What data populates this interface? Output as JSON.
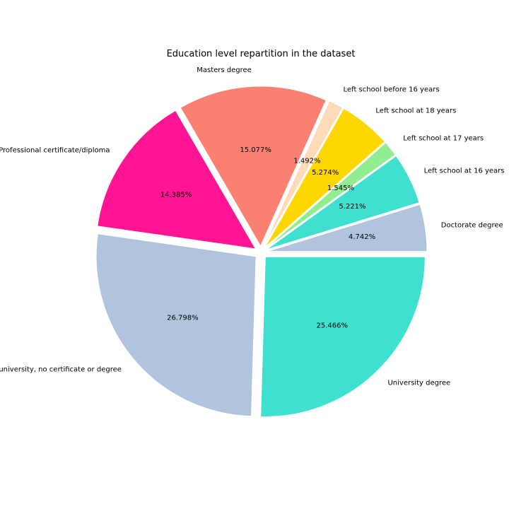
{
  "chart_data": {
    "type": "pie",
    "title": "Education level repartition in the dataset",
    "start_angle_deg": 0,
    "direction": "counterclockwise",
    "slices": [
      {
        "label": "Doctorate degree",
        "value": 4.742,
        "pct_label": "4.742%",
        "color": "#B0C4DE"
      },
      {
        "label": "Left school at 16 years",
        "value": 5.221,
        "pct_label": "5.221%",
        "color": "#40E0D0"
      },
      {
        "label": "Left school at 17 years",
        "value": 1.545,
        "pct_label": "1.545%",
        "color": "#90EE90"
      },
      {
        "label": "Left school at 18 years",
        "value": 5.274,
        "pct_label": "5.274%",
        "color": "#FFD700"
      },
      {
        "label": "Left school before 16 years",
        "value": 1.492,
        "pct_label": "1.492%",
        "color": "#FFDAB9"
      },
      {
        "label": "Masters degree",
        "value": 15.077,
        "pct_label": "15.077%",
        "color": "#FA8072"
      },
      {
        "label": "Professional certificate/diploma",
        "value": 14.385,
        "pct_label": "14.385%",
        "color": "#FF1493"
      },
      {
        "label": "Some college or university, no certificate or degree",
        "value": 26.798,
        "pct_label": "26.798%",
        "color": "#B0C4DE"
      },
      {
        "label": "University degree",
        "value": 25.466,
        "pct_label": "25.466%",
        "color": "#40E0D0"
      }
    ]
  }
}
